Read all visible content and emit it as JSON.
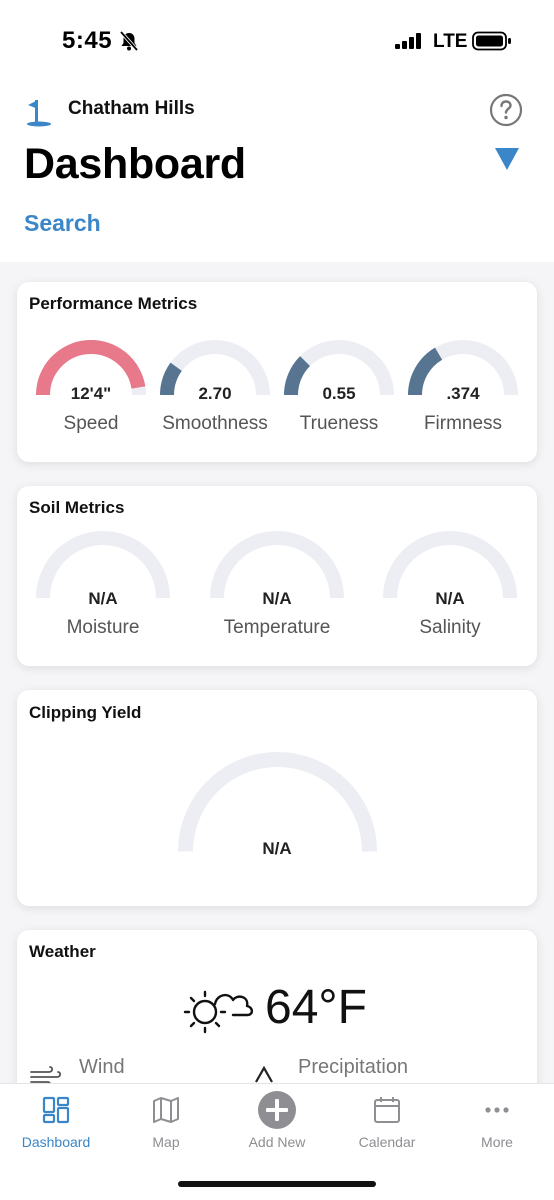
{
  "status_bar": {
    "time": "5:45",
    "network": "LTE"
  },
  "header": {
    "course_name": "Chatham Hills",
    "title": "Dashboard",
    "search_label": "Search"
  },
  "colors": {
    "accent": "#3a86c8",
    "gauge_track": "#ededf4",
    "gauge_red": "#e8798a",
    "gauge_blue": "#577591"
  },
  "performance": {
    "title": "Performance Metrics",
    "metrics": [
      {
        "value": "12'4\"",
        "label": "Speed",
        "fill": 0.95,
        "color": "red"
      },
      {
        "value": "2.70",
        "label": "Smoothness",
        "fill": 0.2,
        "color": "blue"
      },
      {
        "value": "0.55",
        "label": "Trueness",
        "fill": 0.25,
        "color": "blue"
      },
      {
        "value": ".374",
        "label": "Firmness",
        "fill": 0.33,
        "color": "blue"
      }
    ]
  },
  "soil": {
    "title": "Soil Metrics",
    "metrics": [
      {
        "value": "N/A",
        "label": "Moisture",
        "fill": 0
      },
      {
        "value": "N/A",
        "label": "Temperature",
        "fill": 0
      },
      {
        "value": "N/A",
        "label": "Salinity",
        "fill": 0
      }
    ]
  },
  "clipping": {
    "title": "Clipping Yield",
    "value": "N/A",
    "fill": 0
  },
  "weather": {
    "title": "Weather",
    "temperature": "64°F",
    "wind_label": "Wind",
    "precip_label": "Precipitation"
  },
  "tab_bar": {
    "tabs": [
      {
        "label": "Dashboard",
        "icon": "dashboard-grid-icon",
        "active": true
      },
      {
        "label": "Map",
        "icon": "map-icon",
        "active": false
      },
      {
        "label": "Add New",
        "icon": "add-circle-icon",
        "active": false
      },
      {
        "label": "Calendar",
        "icon": "calendar-icon",
        "active": false
      },
      {
        "label": "More",
        "icon": "more-dots-icon",
        "active": false
      }
    ]
  }
}
